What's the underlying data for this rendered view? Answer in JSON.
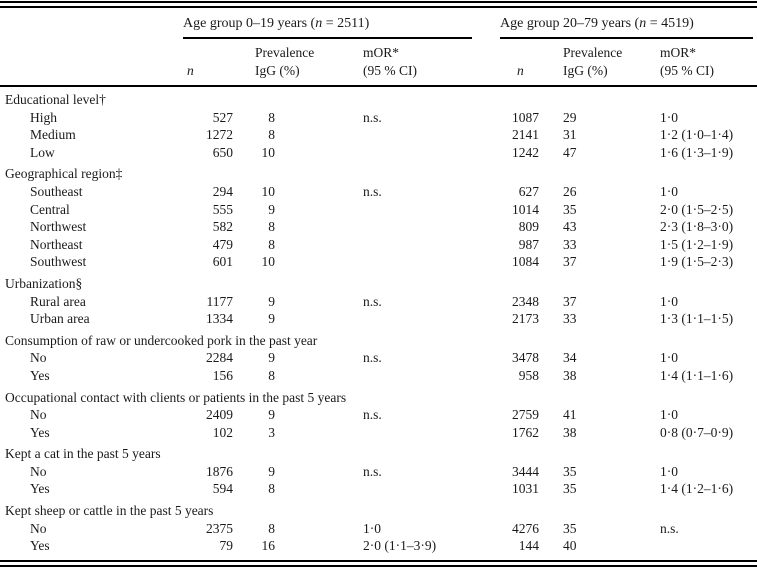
{
  "colors": {
    "text": "#1a1a1a",
    "rule": "#000000",
    "background": "#ffffff"
  },
  "table": {
    "groups": [
      {
        "prefix": "Age group 0–19 years (",
        "n_symbol": "n",
        "suffix": " = 2511)"
      },
      {
        "prefix": "Age group 20–79 years (",
        "n_symbol": "n",
        "suffix": " = 4519)"
      }
    ],
    "columns": {
      "n": "n",
      "prevalence": [
        "Prevalence",
        "IgG (%)"
      ],
      "mor": [
        "mOR*",
        "(95 % CI)"
      ]
    },
    "sections": [
      {
        "header": "Educational level†",
        "rows": [
          {
            "label": "High",
            "g1": {
              "n": "527",
              "prev": "8",
              "mor": "n.s."
            },
            "g2": {
              "n": "1087",
              "prev": "29",
              "mor": "1·0"
            }
          },
          {
            "label": "Medium",
            "g1": {
              "n": "1272",
              "prev": "8",
              "mor": ""
            },
            "g2": {
              "n": "2141",
              "prev": "31",
              "mor": "1·2 (1·0–1·4)"
            }
          },
          {
            "label": "Low",
            "g1": {
              "n": "650",
              "prev": "10",
              "mor": ""
            },
            "g2": {
              "n": "1242",
              "prev": "47",
              "mor": "1·6 (1·3–1·9)"
            }
          }
        ]
      },
      {
        "header": "Geographical region‡",
        "rows": [
          {
            "label": "Southeast",
            "g1": {
              "n": "294",
              "prev": "10",
              "mor": "n.s."
            },
            "g2": {
              "n": "627",
              "prev": "26",
              "mor": "1·0"
            }
          },
          {
            "label": "Central",
            "g1": {
              "n": "555",
              "prev": "9",
              "mor": ""
            },
            "g2": {
              "n": "1014",
              "prev": "35",
              "mor": "2·0 (1·5–2·5)"
            }
          },
          {
            "label": "Northwest",
            "g1": {
              "n": "582",
              "prev": "8",
              "mor": ""
            },
            "g2": {
              "n": "809",
              "prev": "43",
              "mor": "2·3 (1·8–3·0)"
            }
          },
          {
            "label": "Northeast",
            "g1": {
              "n": "479",
              "prev": "8",
              "mor": ""
            },
            "g2": {
              "n": "987",
              "prev": "33",
              "mor": "1·5 (1·2–1·9)"
            }
          },
          {
            "label": "Southwest",
            "g1": {
              "n": "601",
              "prev": "10",
              "mor": ""
            },
            "g2": {
              "n": "1084",
              "prev": "37",
              "mor": "1·9 (1·5–2·3)"
            }
          }
        ]
      },
      {
        "header": "Urbanization§",
        "rows": [
          {
            "label": "Rural area",
            "g1": {
              "n": "1177",
              "prev": "9",
              "mor": "n.s."
            },
            "g2": {
              "n": "2348",
              "prev": "37",
              "mor": "1·0"
            }
          },
          {
            "label": "Urban area",
            "g1": {
              "n": "1334",
              "prev": "9",
              "mor": ""
            },
            "g2": {
              "n": "2173",
              "prev": "33",
              "mor": "1·3 (1·1–1·5)"
            }
          }
        ]
      },
      {
        "header": "Consumption of raw or undercooked pork in the past year",
        "rows": [
          {
            "label": "No",
            "g1": {
              "n": "2284",
              "prev": "9",
              "mor": "n.s."
            },
            "g2": {
              "n": "3478",
              "prev": "34",
              "mor": "1·0"
            }
          },
          {
            "label": "Yes",
            "g1": {
              "n": "156",
              "prev": "8",
              "mor": ""
            },
            "g2": {
              "n": "958",
              "prev": "38",
              "mor": "1·4 (1·1–1·6)"
            }
          }
        ]
      },
      {
        "header": "Occupational contact with clients or patients in the past 5 years",
        "rows": [
          {
            "label": "No",
            "g1": {
              "n": "2409",
              "prev": "9",
              "mor": "n.s."
            },
            "g2": {
              "n": "2759",
              "prev": "41",
              "mor": "1·0"
            }
          },
          {
            "label": "Yes",
            "g1": {
              "n": "102",
              "prev": "3",
              "mor": ""
            },
            "g2": {
              "n": "1762",
              "prev": "38",
              "mor": "0·8 (0·7–0·9)"
            }
          }
        ]
      },
      {
        "header": "Kept a cat in the past 5 years",
        "rows": [
          {
            "label": "No",
            "g1": {
              "n": "1876",
              "prev": "9",
              "mor": "n.s."
            },
            "g2": {
              "n": "3444",
              "prev": "35",
              "mor": "1·0"
            }
          },
          {
            "label": "Yes",
            "g1": {
              "n": "594",
              "prev": "8",
              "mor": ""
            },
            "g2": {
              "n": "1031",
              "prev": "35",
              "mor": "1·4 (1·2–1·6)"
            }
          }
        ]
      },
      {
        "header": "Kept sheep or cattle in the past 5 years",
        "rows": [
          {
            "label": "No",
            "g1": {
              "n": "2375",
              "prev": "8",
              "mor": "1·0"
            },
            "g2": {
              "n": "4276",
              "prev": "35",
              "mor": "n.s."
            }
          },
          {
            "label": "Yes",
            "g1": {
              "n": "79",
              "prev": "16",
              "mor": "2·0 (1·1–3·9)"
            },
            "g2": {
              "n": "144",
              "prev": "40",
              "mor": ""
            }
          }
        ]
      }
    ]
  }
}
